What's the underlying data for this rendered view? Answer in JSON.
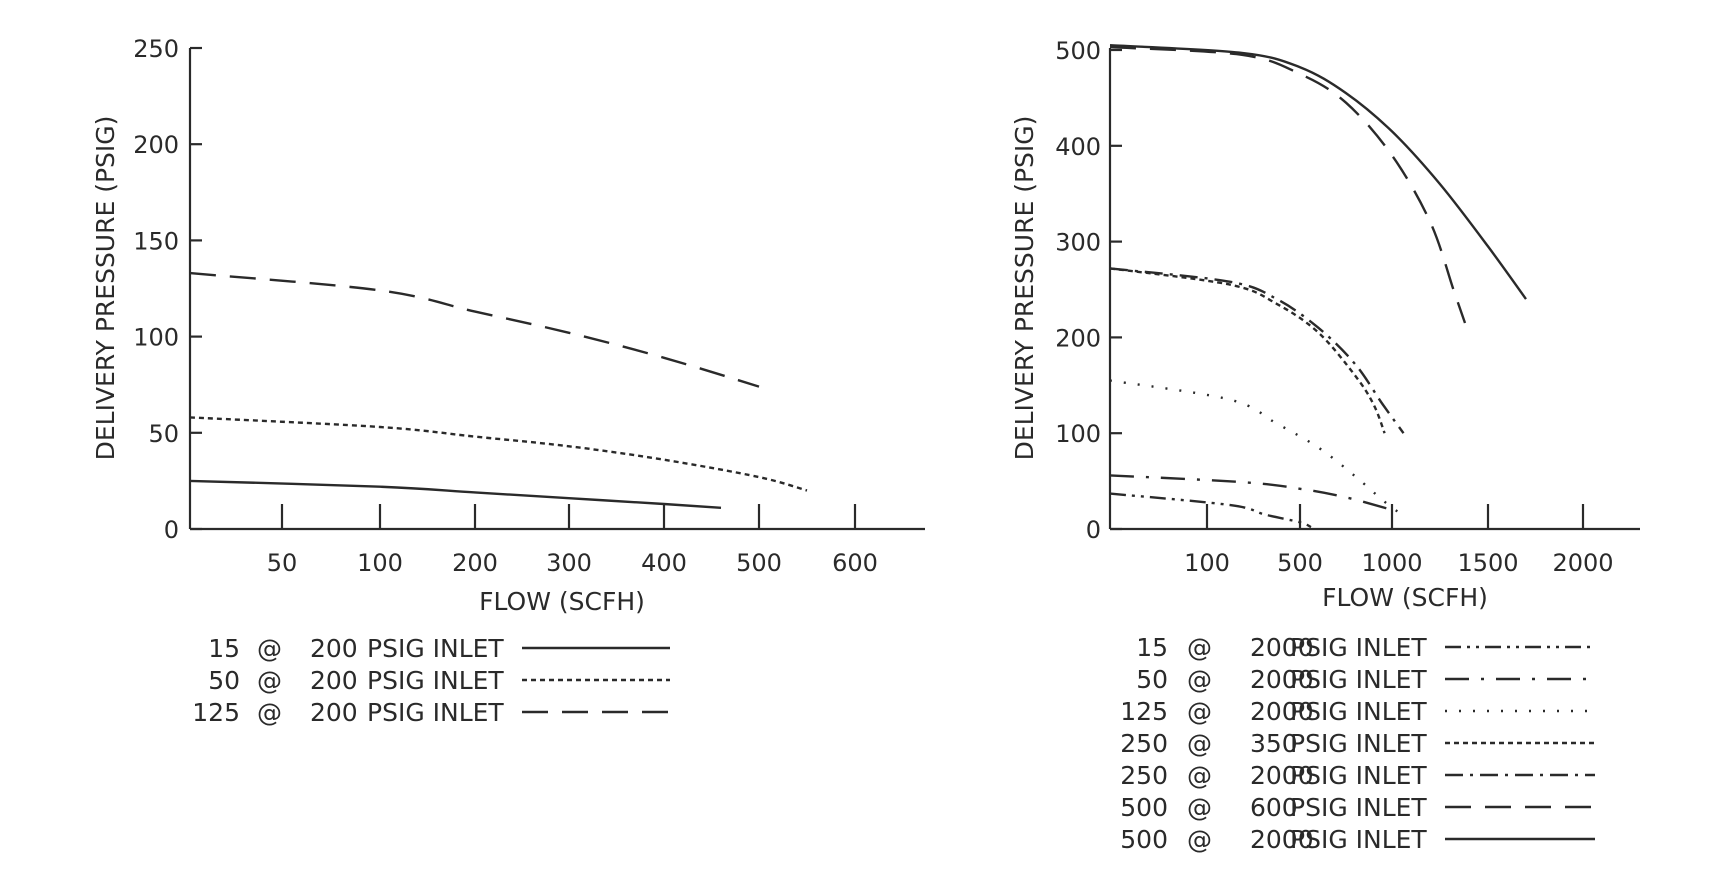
{
  "chart_data": [
    {
      "type": "line",
      "xlabel": "FLOW (SCFH)",
      "ylabel": "DELIVERY PRESSURE (PSIG)",
      "x_ticks": [
        50,
        100,
        200,
        300,
        400,
        500,
        600
      ],
      "y_ticks": [
        0,
        50,
        100,
        150,
        200,
        250
      ],
      "ylim": [
        0,
        250
      ],
      "grid": false,
      "legend_position": "bottom-left",
      "series": [
        {
          "name": "15 @ 200 PSIG INLET",
          "legend_parts": [
            "15",
            "@",
            "200",
            "PSIG INLET"
          ],
          "dash": "solid",
          "points": [
            [
              0,
              25
            ],
            [
              100,
              22
            ],
            [
              200,
              19
            ],
            [
              300,
              16
            ],
            [
              400,
              13
            ],
            [
              460,
              11
            ]
          ]
        },
        {
          "name": "50 @ 200 PSIG INLET",
          "legend_parts": [
            "50",
            "@",
            "200",
            "PSIG INLET"
          ],
          "dash": "short",
          "points": [
            [
              0,
              58
            ],
            [
              100,
              53
            ],
            [
              200,
              48
            ],
            [
              300,
              43
            ],
            [
              400,
              36
            ],
            [
              500,
              27
            ],
            [
              550,
              20
            ]
          ]
        },
        {
          "name": "125 @ 200 PSIG INLET",
          "legend_parts": [
            "125",
            "@",
            "200",
            "PSIG INLET"
          ],
          "dash": "long",
          "points": [
            [
              0,
              133
            ],
            [
              100,
              124
            ],
            [
              200,
              113
            ],
            [
              300,
              102
            ],
            [
              400,
              89
            ],
            [
              500,
              74
            ]
          ]
        }
      ]
    },
    {
      "type": "line",
      "xlabel": "FLOW (SCFH)",
      "ylabel": "DELIVERY PRESSURE (PSIG)",
      "x_ticks": [
        100,
        500,
        1000,
        1500,
        2000
      ],
      "y_ticks": [
        0,
        100,
        200,
        300,
        400,
        500
      ],
      "ylim": [
        0,
        500
      ],
      "grid": false,
      "legend_position": "bottom-right",
      "series": [
        {
          "name": "15 @ 2000 PSIG INLET",
          "legend_parts": [
            "15",
            "@",
            "2000",
            "PSIG INLET"
          ],
          "dash": "dash-dot-dot",
          "points": [
            [
              0,
              37
            ],
            [
              200,
              25
            ],
            [
              350,
              15
            ],
            [
              500,
              7
            ],
            [
              560,
              2
            ]
          ]
        },
        {
          "name": "50 @ 2000 PSIG INLET",
          "legend_parts": [
            "50",
            "@",
            "2000",
            "PSIG INLET"
          ],
          "dash": "long-dot",
          "points": [
            [
              0,
              56
            ],
            [
              250,
              49
            ],
            [
              500,
              42
            ],
            [
              750,
              33
            ],
            [
              1000,
              20
            ]
          ]
        },
        {
          "name": "125 @ 2000 PSIG INLET",
          "legend_parts": [
            "125",
            "@",
            "2000",
            "PSIG INLET"
          ],
          "dash": "dotted",
          "points": [
            [
              0,
              155
            ],
            [
              200,
              135
            ],
            [
              400,
              110
            ],
            [
              600,
              85
            ],
            [
              800,
              55
            ],
            [
              950,
              30
            ],
            [
              1050,
              15
            ]
          ]
        },
        {
          "name": "250 @ 350 PSIG INLET",
          "legend_parts": [
            "250",
            "@",
            "350",
            "PSIG INLET"
          ],
          "dash": "short",
          "points": [
            [
              0,
              272
            ],
            [
              200,
              255
            ],
            [
              400,
              235
            ],
            [
              600,
              205
            ],
            [
              800,
              160
            ],
            [
              900,
              130
            ],
            [
              960,
              100
            ]
          ]
        },
        {
          "name": "250 @ 2000 PSIG INLET",
          "legend_parts": [
            "250",
            "@",
            "2000",
            "PSIG INLET"
          ],
          "dash": "dash-dot",
          "points": [
            [
              0,
              272
            ],
            [
              200,
              258
            ],
            [
              400,
              240
            ],
            [
              600,
              210
            ],
            [
              800,
              172
            ],
            [
              950,
              130
            ],
            [
              1060,
              100
            ]
          ]
        },
        {
          "name": "500 @ 600 PSIG INLET",
          "legend_parts": [
            "500",
            "@",
            "600",
            "PSIG INLET"
          ],
          "dash": "long",
          "points": [
            [
              0,
              503
            ],
            [
              250,
              495
            ],
            [
              500,
              475
            ],
            [
              750,
              445
            ],
            [
              1000,
              390
            ],
            [
              1200,
              320
            ],
            [
              1320,
              250
            ],
            [
              1380,
              215
            ]
          ]
        },
        {
          "name": "500 @ 2000 PSIG INLET",
          "legend_parts": [
            "500",
            "@",
            "2000",
            "PSIG INLET"
          ],
          "dash": "solid",
          "points": [
            [
              0,
              505
            ],
            [
              250,
              497
            ],
            [
              500,
              482
            ],
            [
              750,
              455
            ],
            [
              1000,
              415
            ],
            [
              1250,
              360
            ],
            [
              1500,
              295
            ],
            [
              1700,
              240
            ]
          ]
        }
      ]
    }
  ]
}
